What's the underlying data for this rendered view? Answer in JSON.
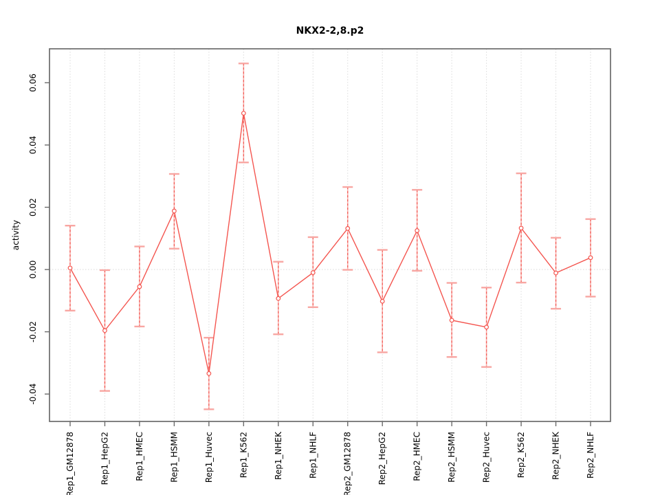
{
  "title": "NKX2-2,8.p2",
  "chart_data": {
    "type": "line",
    "title": "NKX2-2,8.p2",
    "xlabel": "",
    "ylabel": "activity",
    "legend": "none",
    "grid": "vertical dotted gridline at each category; dotted horizontal line at y=0",
    "categories": [
      "Rep1_GM12878",
      "Rep1_HepG2",
      "Rep1_HMEC",
      "Rep1_HSMM",
      "Rep1_Huvec",
      "Rep1_K562",
      "Rep1_NHEK",
      "Rep1_NHLF",
      "Rep2_GM12878",
      "Rep2_HepG2",
      "Rep2_HMEC",
      "Rep2_HSMM",
      "Rep2_Huvec",
      "Rep2_K562",
      "Rep2_NHEK",
      "Rep2_NHLF"
    ],
    "series": [
      {
        "name": "activity",
        "values": [
          0.0005,
          -0.0196,
          -0.0055,
          0.0188,
          -0.0334,
          0.0502,
          -0.0093,
          -0.001,
          0.0132,
          -0.0102,
          0.0125,
          -0.0163,
          -0.0185,
          0.0133,
          -0.0011,
          0.0038
        ],
        "upper": [
          0.0141,
          -0.0002,
          0.0074,
          0.0307,
          -0.0219,
          0.0662,
          0.0025,
          0.0104,
          0.0265,
          0.0063,
          0.0256,
          -0.0043,
          -0.0058,
          0.0309,
          0.0102,
          0.0162
        ],
        "lower": [
          -0.0132,
          -0.039,
          -0.0183,
          0.0067,
          -0.0449,
          0.0344,
          -0.0208,
          -0.0121,
          -0.0001,
          -0.0266,
          -0.0004,
          -0.0281,
          -0.0313,
          -0.0042,
          -0.0126,
          -0.0087
        ]
      }
    ],
    "yticks": [
      -0.04,
      -0.02,
      0.0,
      0.02,
      0.04,
      0.06
    ],
    "ylim": [
      -0.0488,
      0.0709
    ],
    "colors": {
      "background": "#ffffff",
      "line": "#f4554f",
      "point_stroke": "#f4554f",
      "point_fill": "#ffffff",
      "error_cap": "#f8a6a2",
      "error_bar_underlay": "#f8b0ac",
      "error_bar_dash": "#f35b55",
      "gridline": "#e3e3e3",
      "zero_line": "#d9d9d9",
      "axis": "#6b6b6b",
      "text": "#000000"
    }
  }
}
